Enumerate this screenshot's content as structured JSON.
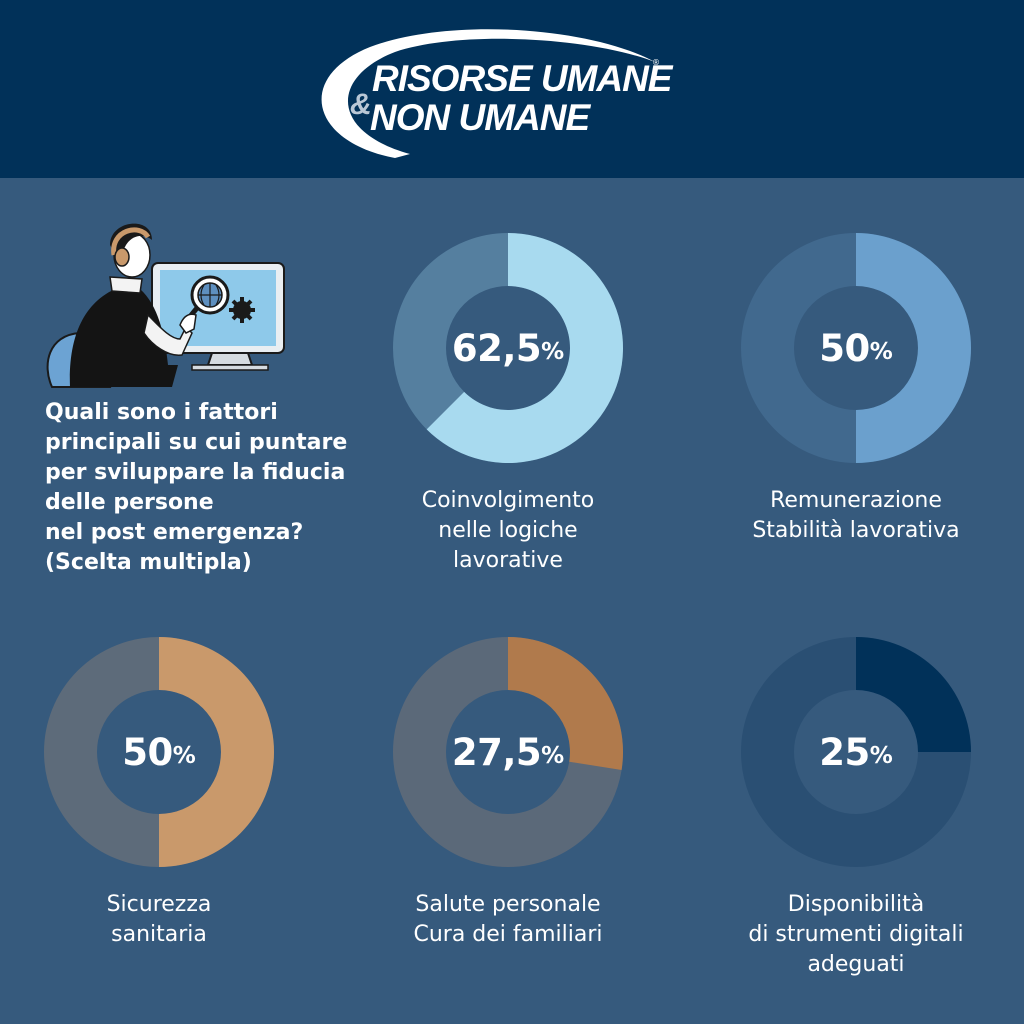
{
  "logo": {
    "line1": "RISORSE UMANE",
    "amp": "&",
    "line2": "NON UMANE",
    "reg": "®"
  },
  "question": "Quali sono i fattori\nprincipali su cui puntare\nper sviluppare la fiducia\ndelle persone\nnel post emergenza?\n (Scelta multipla)",
  "chart_data": [
    {
      "type": "pie",
      "value": 62.5,
      "value_text": "62,5",
      "unit": "%",
      "label": "Coinvolgimento\nnelle logiche\nlavorative",
      "color": "#a8daef",
      "track_color": "#557f9f"
    },
    {
      "type": "pie",
      "value": 50,
      "value_text": "50",
      "unit": "%",
      "label": "Remunerazione\nStabilità lavorativa",
      "color": "#6ba0cd",
      "track_color": "#41698e"
    },
    {
      "type": "pie",
      "value": 50,
      "value_text": "50",
      "unit": "%",
      "label": "Sicurezza\nsanitaria",
      "color": "#c9996b",
      "track_color": "#5d6b7a"
    },
    {
      "type": "pie",
      "value": 27.5,
      "value_text": "27,5",
      "unit": "%",
      "label": "Salute personale\nCura dei familiari",
      "color": "#b07a4c",
      "track_color": "#5b6979"
    },
    {
      "type": "pie",
      "value": 25,
      "value_text": "25",
      "unit": "%",
      "label": "Disponibilità\ndi strumenti digitali\nadeguati",
      "color": "#013159",
      "track_color": "#2a4f73"
    }
  ]
}
